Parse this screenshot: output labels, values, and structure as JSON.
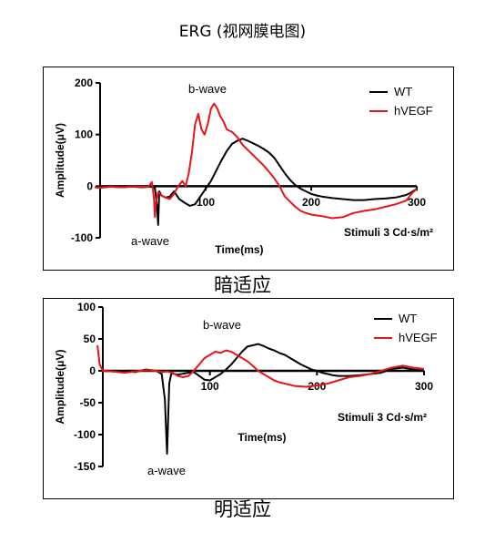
{
  "title": "ERG (视网膜电图)",
  "chart_data": [
    {
      "type": "line",
      "caption": "暗适应",
      "ylabel": "Amplitude(μV)",
      "xlabel": "Time(ms)",
      "stimulus": "Stimuli 3 Cd·s/m²",
      "xlim": [
        0,
        300
      ],
      "ylim": [
        -100,
        200
      ],
      "yticks": [
        "200",
        "100",
        "0",
        "-100"
      ],
      "xticks": [
        "100",
        "200",
        "300"
      ],
      "annotations": {
        "b_wave": "b-wave",
        "a_wave": "a-wave"
      },
      "colors": {
        "WT": "#000000",
        "hVEGF": "#e8141b"
      },
      "series": [
        {
          "name": "WT",
          "points": [
            [
              -5,
              -2
            ],
            [
              0,
              -3
            ],
            [
              10,
              -1
            ],
            [
              20,
              -2
            ],
            [
              30,
              -1
            ],
            [
              40,
              -2
            ],
            [
              48,
              -1
            ],
            [
              52,
              -4
            ],
            [
              54,
              -40
            ],
            [
              55,
              -75
            ],
            [
              56,
              -10
            ],
            [
              58,
              -18
            ],
            [
              62,
              -22
            ],
            [
              66,
              -20
            ],
            [
              70,
              -10
            ],
            [
              75,
              -25
            ],
            [
              80,
              -32
            ],
            [
              85,
              -38
            ],
            [
              90,
              -35
            ],
            [
              95,
              -20
            ],
            [
              100,
              -5
            ],
            [
              105,
              10
            ],
            [
              110,
              30
            ],
            [
              115,
              50
            ],
            [
              120,
              68
            ],
            [
              125,
              82
            ],
            [
              130,
              88
            ],
            [
              135,
              92
            ],
            [
              140,
              88
            ],
            [
              145,
              83
            ],
            [
              150,
              78
            ],
            [
              155,
              72
            ],
            [
              160,
              65
            ],
            [
              165,
              55
            ],
            [
              170,
              40
            ],
            [
              175,
              25
            ],
            [
              180,
              12
            ],
            [
              185,
              2
            ],
            [
              190,
              -5
            ],
            [
              195,
              -10
            ],
            [
              200,
              -15
            ],
            [
              205,
              -18
            ],
            [
              210,
              -20
            ],
            [
              220,
              -23
            ],
            [
              230,
              -25
            ],
            [
              240,
              -27
            ],
            [
              250,
              -27
            ],
            [
              260,
              -25
            ],
            [
              270,
              -24
            ],
            [
              280,
              -22
            ],
            [
              290,
              -17
            ],
            [
              295,
              -12
            ],
            [
              300,
              -5
            ]
          ]
        },
        {
          "name": "hVEGF",
          "points": [
            [
              -5,
              -2
            ],
            [
              0,
              -3
            ],
            [
              10,
              -1
            ],
            [
              20,
              -2
            ],
            [
              30,
              -1
            ],
            [
              40,
              -1
            ],
            [
              46,
              -1
            ],
            [
              49,
              8
            ],
            [
              50,
              -5
            ],
            [
              51,
              -25
            ],
            [
              52,
              -60
            ],
            [
              53,
              -30
            ],
            [
              55,
              -12
            ],
            [
              58,
              -18
            ],
            [
              62,
              -22
            ],
            [
              66,
              -25
            ],
            [
              70,
              -15
            ],
            [
              74,
              0
            ],
            [
              78,
              10
            ],
            [
              81,
              0
            ],
            [
              84,
              25
            ],
            [
              87,
              65
            ],
            [
              90,
              120
            ],
            [
              93,
              140
            ],
            [
              96,
              110
            ],
            [
              99,
              100
            ],
            [
              102,
              120
            ],
            [
              105,
              150
            ],
            [
              108,
              160
            ],
            [
              111,
              150
            ],
            [
              114,
              135
            ],
            [
              117,
              125
            ],
            [
              120,
              110
            ],
            [
              125,
              105
            ],
            [
              130,
              95
            ],
            [
              135,
              80
            ],
            [
              140,
              70
            ],
            [
              145,
              60
            ],
            [
              150,
              50
            ],
            [
              155,
              40
            ],
            [
              160,
              28
            ],
            [
              165,
              15
            ],
            [
              170,
              0
            ],
            [
              175,
              -20
            ],
            [
              180,
              -30
            ],
            [
              185,
              -40
            ],
            [
              190,
              -48
            ],
            [
              195,
              -52
            ],
            [
              200,
              -55
            ],
            [
              210,
              -58
            ],
            [
              220,
              -62
            ],
            [
              230,
              -60
            ],
            [
              240,
              -52
            ],
            [
              250,
              -48
            ],
            [
              260,
              -45
            ],
            [
              270,
              -40
            ],
            [
              280,
              -35
            ],
            [
              290,
              -28
            ],
            [
              295,
              -15
            ],
            [
              300,
              -5
            ]
          ]
        }
      ]
    },
    {
      "type": "line",
      "caption": "明适应",
      "ylabel": "Amplitude(μV)",
      "xlabel": "Time(ms)",
      "stimulus": "Stimuli 3 Cd·s/m²",
      "xlim": [
        0,
        300
      ],
      "ylim": [
        -150,
        100
      ],
      "yticks": [
        "100",
        "50",
        "0",
        "-50",
        "-100",
        "-150"
      ],
      "xticks": [
        "100",
        "200",
        "300"
      ],
      "annotations": {
        "b_wave": "b-wave",
        "a_wave": "a-wave"
      },
      "colors": {
        "WT": "#000000",
        "hVEGF": "#e8141b"
      },
      "series": [
        {
          "name": "WT",
          "points": [
            [
              0,
              0
            ],
            [
              10,
              -1
            ],
            [
              20,
              0
            ],
            [
              30,
              -2
            ],
            [
              40,
              2
            ],
            [
              45,
              1
            ],
            [
              50,
              0
            ],
            [
              55,
              -5
            ],
            [
              58,
              -45
            ],
            [
              60,
              -130
            ],
            [
              62,
              -20
            ],
            [
              64,
              -4
            ],
            [
              70,
              -6
            ],
            [
              80,
              -3
            ],
            [
              85,
              -2
            ],
            [
              90,
              -8
            ],
            [
              95,
              -14
            ],
            [
              100,
              -15
            ],
            [
              105,
              -10
            ],
            [
              110,
              -5
            ],
            [
              115,
              2
            ],
            [
              120,
              10
            ],
            [
              125,
              20
            ],
            [
              130,
              30
            ],
            [
              135,
              38
            ],
            [
              140,
              40
            ],
            [
              145,
              42
            ],
            [
              150,
              39
            ],
            [
              155,
              35
            ],
            [
              160,
              32
            ],
            [
              165,
              28
            ],
            [
              170,
              25
            ],
            [
              175,
              20
            ],
            [
              180,
              15
            ],
            [
              185,
              10
            ],
            [
              190,
              6
            ],
            [
              195,
              2
            ],
            [
              200,
              0
            ],
            [
              205,
              -3
            ],
            [
              210,
              -5
            ],
            [
              215,
              -7
            ],
            [
              220,
              -8
            ],
            [
              230,
              -8
            ],
            [
              240,
              -7
            ],
            [
              250,
              -5
            ],
            [
              260,
              -3
            ],
            [
              270,
              3
            ],
            [
              280,
              5
            ],
            [
              290,
              2
            ],
            [
              300,
              0
            ]
          ]
        },
        {
          "name": "hVEGF",
          "points": [
            [
              -5,
              40
            ],
            [
              -3,
              10
            ],
            [
              0,
              0
            ],
            [
              10,
              -1
            ],
            [
              20,
              -3
            ],
            [
              30,
              -1
            ],
            [
              40,
              1
            ],
            [
              50,
              0
            ],
            [
              55,
              -2
            ],
            [
              60,
              -1
            ],
            [
              65,
              -3
            ],
            [
              70,
              -8
            ],
            [
              75,
              -10
            ],
            [
              80,
              -8
            ],
            [
              85,
              0
            ],
            [
              90,
              10
            ],
            [
              95,
              20
            ],
            [
              100,
              25
            ],
            [
              105,
              30
            ],
            [
              110,
              28
            ],
            [
              115,
              32
            ],
            [
              120,
              30
            ],
            [
              125,
              25
            ],
            [
              130,
              20
            ],
            [
              135,
              15
            ],
            [
              140,
              8
            ],
            [
              145,
              0
            ],
            [
              150,
              -5
            ],
            [
              155,
              -10
            ],
            [
              160,
              -15
            ],
            [
              165,
              -18
            ],
            [
              170,
              -20
            ],
            [
              175,
              -22
            ],
            [
              180,
              -24
            ],
            [
              190,
              -25
            ],
            [
              200,
              -23
            ],
            [
              210,
              -20
            ],
            [
              220,
              -15
            ],
            [
              230,
              -10
            ],
            [
              240,
              -8
            ],
            [
              250,
              -5
            ],
            [
              260,
              0
            ],
            [
              270,
              5
            ],
            [
              280,
              8
            ],
            [
              290,
              5
            ],
            [
              300,
              3
            ]
          ]
        }
      ]
    }
  ]
}
